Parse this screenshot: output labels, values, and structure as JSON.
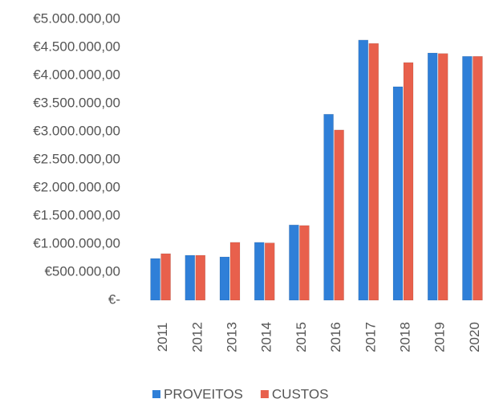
{
  "chart_data": {
    "type": "bar",
    "categories": [
      "2011",
      "2012",
      "2013",
      "2014",
      "2015",
      "2016",
      "2017",
      "2018",
      "2019",
      "2020"
    ],
    "series": [
      {
        "name": "PROVEITOS",
        "color": "#2f7fd8",
        "values": [
          743000,
          800000,
          771000,
          1030000,
          1340000,
          3310000,
          4630000,
          3800000,
          4400000,
          4340000
        ]
      },
      {
        "name": "CUSTOS",
        "color": "#e8604c",
        "values": [
          829000,
          800000,
          1030000,
          1020000,
          1330000,
          3030000,
          4570000,
          4230000,
          4390000,
          4340000
        ]
      }
    ],
    "ylim": [
      0,
      5000000
    ],
    "yticks": [
      {
        "value": 0,
        "label": "€-"
      },
      {
        "value": 500000,
        "label": "€500.000,00"
      },
      {
        "value": 1000000,
        "label": "€1.000.000,00"
      },
      {
        "value": 1500000,
        "label": "€1.500.000,00"
      },
      {
        "value": 2000000,
        "label": "€2.000.000,00"
      },
      {
        "value": 2500000,
        "label": "€2.500.000,00"
      },
      {
        "value": 3000000,
        "label": "€3.000.000,00"
      },
      {
        "value": 3500000,
        "label": "€3.500.000,00"
      },
      {
        "value": 4000000,
        "label": "€4.000.000,00"
      },
      {
        "value": 4500000,
        "label": "€4.500.000,00"
      },
      {
        "value": 5000000,
        "label": "€5.000.000,00"
      }
    ],
    "grid": false,
    "legend": "bottom"
  }
}
